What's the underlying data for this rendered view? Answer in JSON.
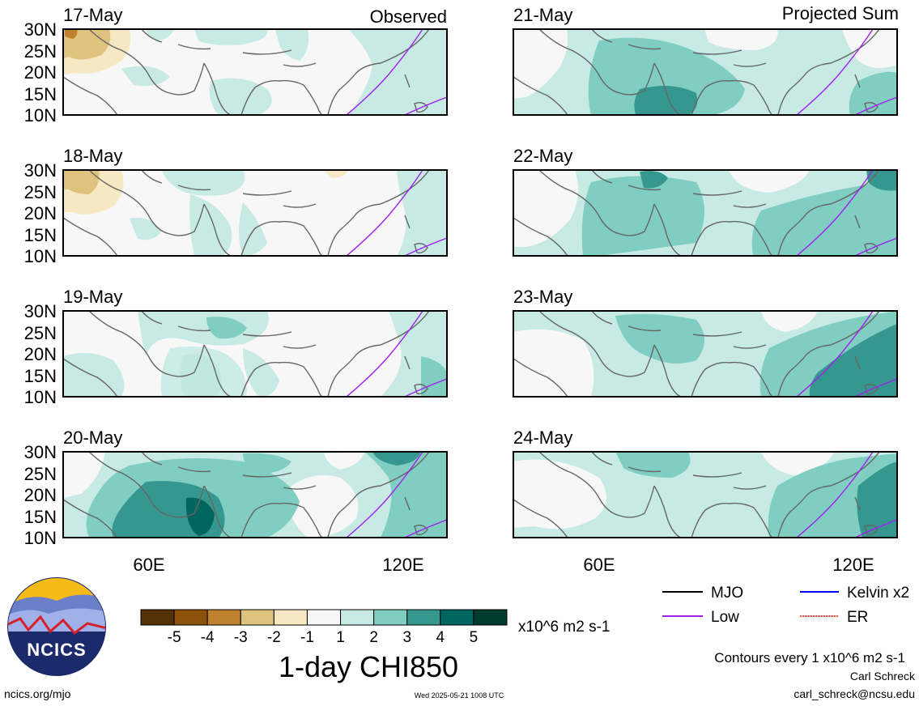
{
  "header": {
    "observed_label": "Observed",
    "projected_label": "Projected Sum"
  },
  "lat_labels": [
    "30N",
    "25N",
    "20N",
    "15N",
    "10N"
  ],
  "lon_labels": [
    "60E",
    "120E"
  ],
  "panels": {
    "left": [
      {
        "date": "17-May",
        "anomaly_level": 0
      },
      {
        "date": "18-May",
        "anomaly_level": 1
      },
      {
        "date": "19-May",
        "anomaly_level": 2
      },
      {
        "date": "20-May",
        "anomaly_level": 3
      }
    ],
    "right": [
      {
        "date": "21-May",
        "anomaly_level": 4
      },
      {
        "date": "22-May",
        "anomaly_level": 5
      },
      {
        "date": "23-May",
        "anomaly_level": 6
      },
      {
        "date": "24-May",
        "anomaly_level": 7
      }
    ]
  },
  "colorbar": {
    "ticks": [
      "-5",
      "-4",
      "-3",
      "-2",
      "-1",
      "1",
      "2",
      "3",
      "4",
      "5"
    ],
    "colors": [
      "#543005",
      "#8c510a",
      "#bf812d",
      "#dfc27d",
      "#f6e8c3",
      "#f7f7f7",
      "#c7eae5",
      "#80cdc1",
      "#35978f",
      "#01665e",
      "#003c30"
    ],
    "units": "x10^6 m2 s-1",
    "title": "1-day CHI850"
  },
  "legend": {
    "items": [
      {
        "label": "MJO",
        "color": "#000000"
      },
      {
        "label": "Kelvin x2",
        "color": "#0000ff"
      },
      {
        "label": "Low",
        "color": "#a020f0"
      },
      {
        "label": "ER",
        "color": "#ff0000"
      }
    ],
    "contours_note": "Contours every 1 x10^6 m2 s-1"
  },
  "footer": {
    "author": "Carl Schreck",
    "email": "carl_schreck@ncsu.edu",
    "site": "ncics.org/mjo",
    "timestamp": "Wed 2025-05-21 1008 UTC",
    "logo_text": "NCICS"
  }
}
